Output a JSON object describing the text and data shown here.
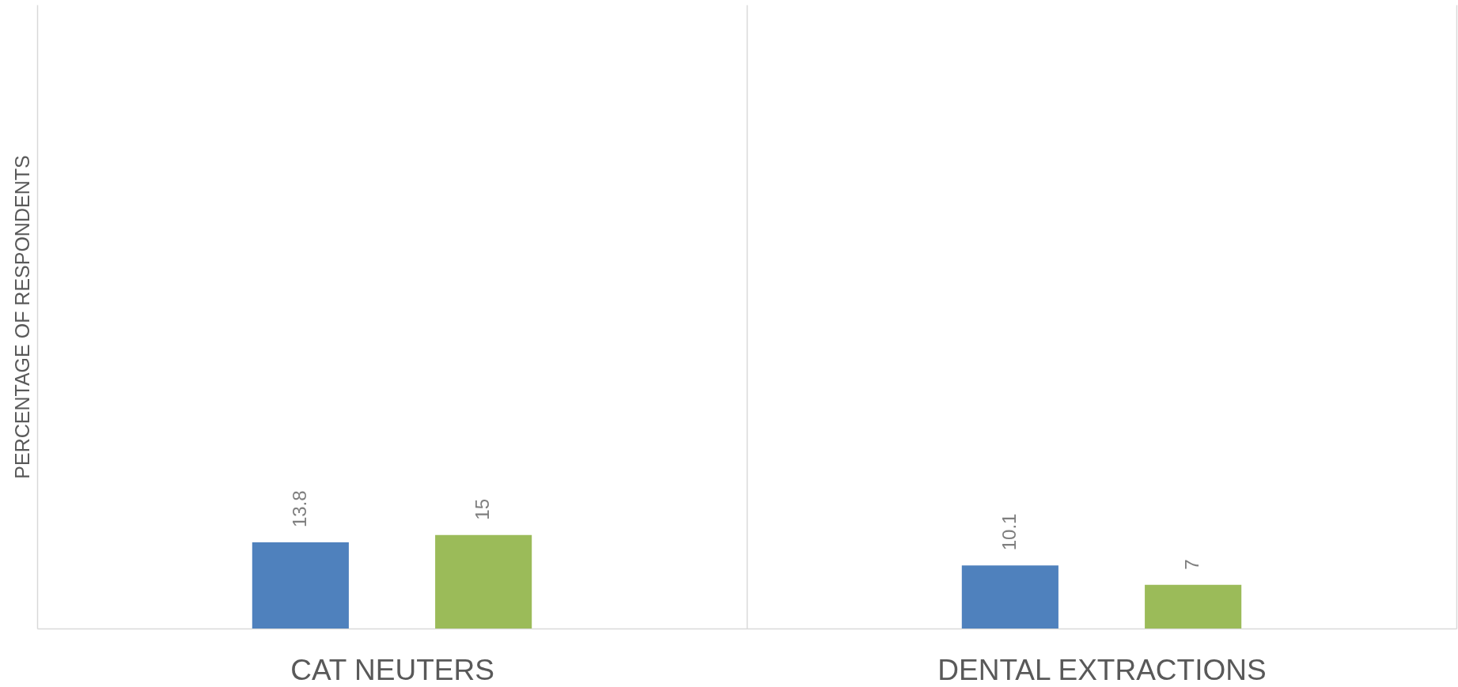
{
  "chart_data": {
    "type": "bar",
    "ylabel": "PERCENTAGE OF RESPONDENTS",
    "categories": [
      "CAT NEUTERS",
      "DENTAL EXTRACTIONS"
    ],
    "series": [
      {
        "color": "#4f81bd",
        "values": [
          13.8,
          10.1
        ]
      },
      {
        "color": "#9bbb59",
        "values": [
          15,
          7
        ]
      }
    ],
    "ylim": [
      0,
      100
    ],
    "data_labels": true,
    "grid": "x",
    "tick_labels": "x"
  }
}
